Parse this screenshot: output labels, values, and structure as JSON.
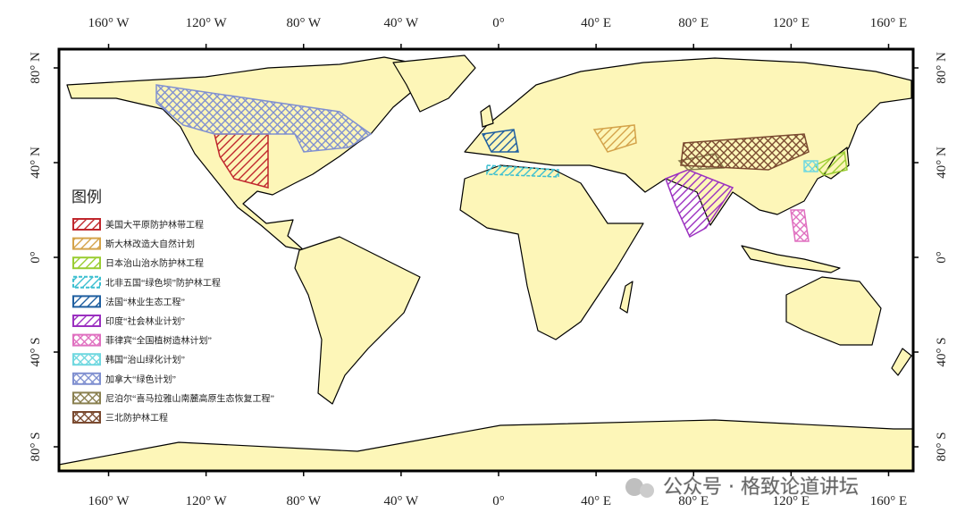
{
  "map": {
    "lon_ticks": [
      {
        "value": -160,
        "label": "160° W"
      },
      {
        "value": -120,
        "label": "120° W"
      },
      {
        "value": -80,
        "label": "80° W"
      },
      {
        "value": -40,
        "label": "40° W"
      },
      {
        "value": 0,
        "label": "0°"
      },
      {
        "value": 40,
        "label": "40° E"
      },
      {
        "value": 80,
        "label": "80° E"
      },
      {
        "value": 120,
        "label": "120° E"
      },
      {
        "value": 160,
        "label": "160° E"
      }
    ],
    "lat_ticks": [
      {
        "value": 80,
        "label": "80° N"
      },
      {
        "value": 40,
        "label": "40° N"
      },
      {
        "value": 0,
        "label": "0°"
      },
      {
        "value": -40,
        "label": "40° S"
      },
      {
        "value": -80,
        "label": "80° S"
      }
    ],
    "legend": {
      "title": "图例",
      "items": [
        {
          "name": "美国大平原防护林带工程",
          "color": "#c0272d"
        },
        {
          "name": "斯大林改造大自然计划",
          "color": "#d4a34a"
        },
        {
          "name": "日本治山治水防护林工程",
          "color": "#9acd32"
        },
        {
          "name": "北非五国“绿色坝”防护林工程",
          "color": "#3cbfd0"
        },
        {
          "name": "法国“林业生态工程”",
          "color": "#1f5fa0"
        },
        {
          "name": "印度“社会林业计划”",
          "color": "#9b30c0"
        },
        {
          "name": "菲律宾“全国植树造林计划”",
          "color": "#e070c0"
        },
        {
          "name": "韩国“治山绿化计划”",
          "color": "#70d8e0"
        },
        {
          "name": "加拿大“绿色计划”",
          "color": "#8090d0"
        },
        {
          "name": "尼泊尔“喜马拉雅山南麓高原生态恢复工程”",
          "color": "#8a8050"
        },
        {
          "name": "三北防护林工程",
          "color": "#7a4a30"
        }
      ]
    }
  },
  "watermark": "公众号 · 格致论道讲坛"
}
